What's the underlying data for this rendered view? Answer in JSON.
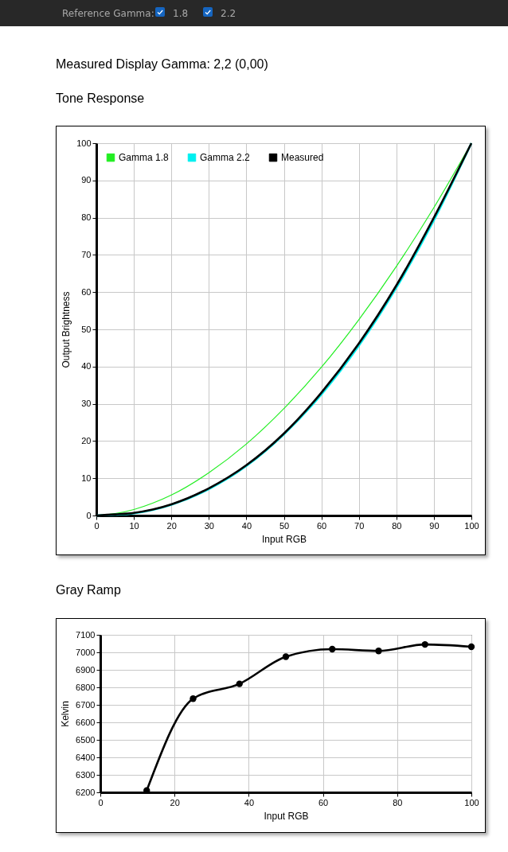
{
  "chart_data": [
    {
      "type": "line",
      "title": "Tone Response",
      "xlabel": "Input RGB",
      "ylabel": "Output Brightness",
      "annotations": [
        "Reference Gamma:",
        "1.8",
        "2.2",
        "Measured Display Gamma: 2,2 (0,00)"
      ],
      "x": [
        0,
        5,
        10,
        15,
        20,
        30,
        40,
        50,
        60,
        70,
        80,
        90,
        100
      ],
      "series": [
        {
          "name": "Gamma 1.8",
          "color": "#22ee22",
          "values": [
            0,
            0.5,
            1.6,
            3.3,
            5.5,
            11.5,
            19.2,
            28.7,
            39.8,
            52.6,
            66.9,
            82.7,
            100
          ]
        },
        {
          "name": "Gamma 2.2",
          "color": "#00f0f0",
          "values": [
            0,
            0.2,
            0.6,
            1.5,
            2.9,
            7.1,
            13.3,
            21.8,
            32.5,
            45.6,
            61.2,
            79.3,
            100
          ]
        },
        {
          "name": "Measured",
          "color": "#000000",
          "values": [
            0,
            0.3,
            0.7,
            1.6,
            3.0,
            7.3,
            13.5,
            22.0,
            33.0,
            46.2,
            61.8,
            80.0,
            100
          ]
        }
      ],
      "xlim": [
        0,
        100
      ],
      "xticks": [
        0,
        10,
        20,
        30,
        40,
        50,
        60,
        70,
        80,
        90,
        100
      ],
      "ylim": [
        0,
        100
      ],
      "yticks": [
        0,
        10,
        20,
        30,
        40,
        50,
        60,
        70,
        80,
        90,
        100
      ],
      "grid": true,
      "legend": "top left",
      "marker": "none"
    },
    {
      "type": "line",
      "title": "Gray Ramp",
      "xlabel": "Input RGB",
      "ylabel": "Kelvin",
      "x": [
        12.5,
        25,
        37.5,
        50,
        62.5,
        75,
        87.5,
        100
      ],
      "series": [
        {
          "color": "#000000",
          "values": [
            6210,
            6735,
            6820,
            6975,
            7018,
            7008,
            7045,
            7032
          ]
        }
      ],
      "xlim": [
        0,
        100
      ],
      "xticks": [
        0,
        20,
        40,
        60,
        80,
        100
      ],
      "ylim": [
        6200,
        7100
      ],
      "yticks": [
        6200,
        6300,
        6400,
        6500,
        6600,
        6700,
        6800,
        6900,
        7000,
        7100
      ],
      "grid": true,
      "legend": false,
      "marker": "circle"
    }
  ]
}
